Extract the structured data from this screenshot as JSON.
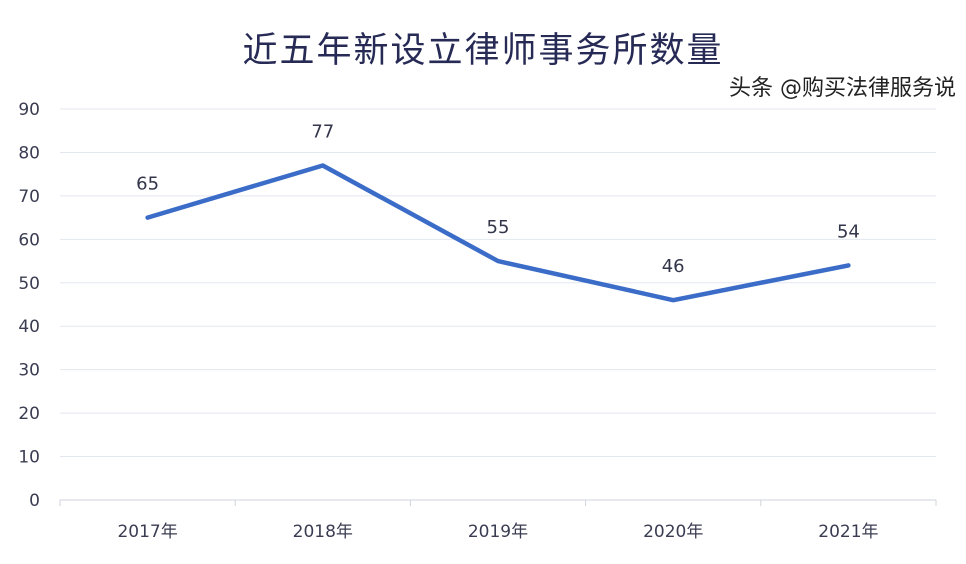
{
  "chart_data": {
    "type": "line",
    "title": "近五年新设立律师事务所数量",
    "categories": [
      "2017年",
      "2018年",
      "2019年",
      "2020年",
      "2021年"
    ],
    "values": [
      65,
      77,
      55,
      46,
      54
    ],
    "data_labels": [
      "65",
      "77",
      "55",
      "46",
      "54"
    ],
    "ylim": [
      0,
      90
    ],
    "yticks": [
      "0",
      "10",
      "20",
      "30",
      "40",
      "50",
      "60",
      "70",
      "80",
      "90"
    ],
    "xlabel": "",
    "ylabel": "",
    "grid": true,
    "legend": "none",
    "line_color": "#3a6cc8"
  },
  "watermark": "头条 @购买法律服务说"
}
